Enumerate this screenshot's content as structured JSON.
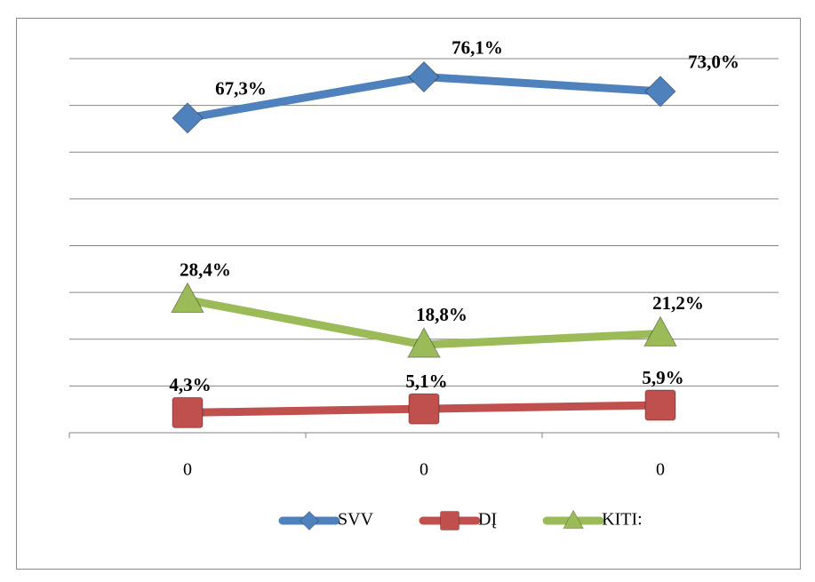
{
  "chart_data": {
    "type": "line",
    "categories": [
      "0",
      "0",
      "0"
    ],
    "ylim": [
      0,
      80
    ],
    "yticks": [
      0,
      10,
      20,
      30,
      40,
      50,
      60,
      70,
      80
    ],
    "grid": true,
    "legend": "bottom",
    "series": [
      {
        "name": "SVV",
        "color": "#4f81bd",
        "marker": "diamond",
        "values": [
          67.3,
          76.1,
          73.0
        ],
        "value_labels": [
          "67,3%",
          "76,1%",
          "73,0%"
        ]
      },
      {
        "name": "DĮ",
        "color": "#c0504d",
        "marker": "square",
        "values": [
          4.3,
          5.1,
          5.9
        ],
        "value_labels": [
          "4,3%",
          "5,1%",
          "5,9%"
        ]
      },
      {
        "name": "KITI:",
        "color": "#9bbb59",
        "marker": "triangle",
        "values": [
          28.4,
          18.8,
          21.2
        ],
        "value_labels": [
          "28,4%",
          "18,8%",
          "21,2%"
        ]
      }
    ]
  }
}
